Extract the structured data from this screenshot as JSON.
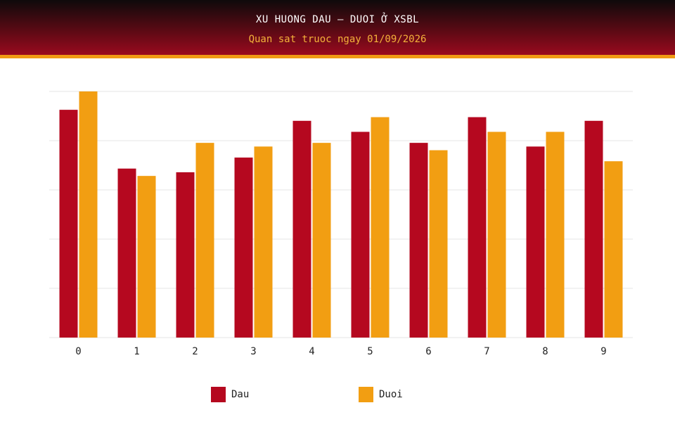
{
  "header": {
    "title": "XU HUONG DAU – DUOI Ở XSBL",
    "subtitle": "Quan sat truoc ngay 01/09/2026"
  },
  "colors": {
    "dau": "#b5081f",
    "duoi": "#f29e12",
    "grid": "#e6e6e6",
    "axis_text": "#222222"
  },
  "chart_data": {
    "type": "bar",
    "categories": [
      "0",
      "1",
      "2",
      "3",
      "4",
      "5",
      "6",
      "7",
      "8",
      "9"
    ],
    "series": [
      {
        "name": "Dau",
        "values": [
          31,
          23,
          22.5,
          24.5,
          29.5,
          28,
          26.5,
          30,
          26,
          29.5
        ]
      },
      {
        "name": "Duoi",
        "values": [
          33.5,
          22,
          26.5,
          26,
          26.5,
          30,
          25.5,
          28,
          28,
          24
        ]
      }
    ],
    "ylim": [
      0,
      33.5
    ],
    "grid": true,
    "legend_position": "bottom",
    "xlabel": "",
    "ylabel": ""
  },
  "legend": {
    "items": [
      {
        "label": "Dau"
      },
      {
        "label": "Duoi"
      }
    ]
  }
}
